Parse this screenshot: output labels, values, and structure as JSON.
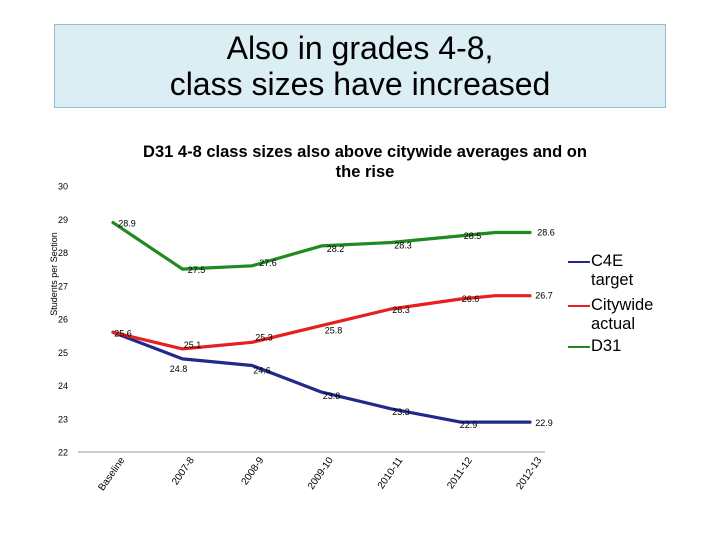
{
  "slide": {
    "title": "Also in grades 4-8,\nclass sizes have increased"
  },
  "chart_data": {
    "type": "line",
    "title": "D31 4-8 class sizes also above citywide averages and on\nthe rise",
    "xlabel": "",
    "ylabel": "Students per Section",
    "ylim": [
      22,
      30
    ],
    "yticks": [
      22,
      23,
      24,
      25,
      26,
      27,
      28,
      29,
      30
    ],
    "categories": [
      "Baseline",
      "2007-8",
      "2008-9",
      "2009-10",
      "2010-11",
      "2011-12",
      "2012-13"
    ],
    "grid": false,
    "legend_position": "right",
    "series": [
      {
        "name": "C4E target",
        "color": "#1f2a8a",
        "x": [
          0,
          1,
          2,
          3,
          4,
          5,
          5.5,
          6
        ],
        "values": [
          25.6,
          24.8,
          24.6,
          23.8,
          23.3,
          22.9,
          22.9,
          22.9
        ],
        "labels": [
          "",
          "24.8",
          "24.6",
          "23.8",
          "23.3",
          "22.9",
          "",
          "22.9"
        ]
      },
      {
        "name": "Citywide actual",
        "color": "#e81f1f",
        "x": [
          0,
          1,
          2,
          3,
          4,
          5,
          5.5,
          6
        ],
        "values": [
          25.6,
          25.1,
          25.3,
          25.8,
          26.3,
          26.6,
          26.7,
          26.7
        ],
        "labels": [
          "25.6",
          "25.1",
          "25.3",
          "25.8",
          "26.3",
          "26.6",
          "",
          "26.7"
        ]
      },
      {
        "name": "D31",
        "color": "#1f8a1f",
        "x": [
          0,
          1,
          2,
          3,
          4,
          5,
          5.5,
          6
        ],
        "values": [
          28.9,
          27.5,
          27.6,
          28.2,
          28.3,
          28.5,
          28.6,
          28.6
        ],
        "labels": [
          "28.9",
          "27.5",
          "27.6",
          "28.2",
          "28.3",
          "28.5",
          "",
          "28.6"
        ]
      }
    ]
  }
}
